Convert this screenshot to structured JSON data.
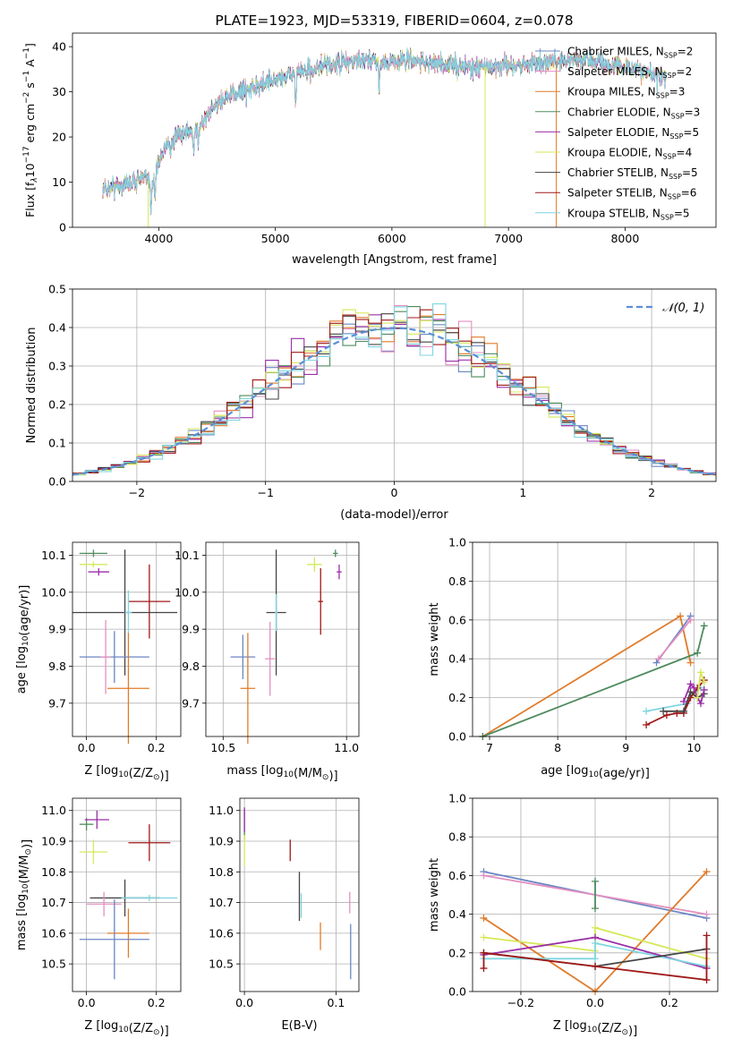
{
  "chart_data": [
    {
      "type": "line",
      "title": "PLATE=1923, MJD=53319, FIBERID=0604, z=0.078",
      "xlabel": "wavelength [Angstrom, rest frame]",
      "ylabel_parts": [
        "Flux [f",
        "λ",
        "10",
        "−17",
        " erg cm",
        "−2",
        " s",
        "−1",
        " A",
        "−1",
        "]"
      ],
      "xlim": [
        3260,
        8780
      ],
      "ylim": [
        0,
        43
      ],
      "xticks": [
        4000,
        5000,
        6000,
        7000,
        8000
      ],
      "yticks": [
        0,
        10,
        20,
        30,
        40
      ],
      "grid": false,
      "legend_position": "right",
      "series": [
        {
          "name": "Chabrier MILES, N",
          "sub": "SSP",
          "suffix": "=2",
          "color": "#6b86c4"
        },
        {
          "name": "Salpeter MILES, N",
          "sub": "SSP",
          "suffix": "=2",
          "color": "#e48fc0"
        },
        {
          "name": "Kroupa MILES, N",
          "sub": "SSP",
          "suffix": "=3",
          "color": "#e07b2a"
        },
        {
          "name": "Chabrier ELODIE, N",
          "sub": "SSP",
          "suffix": "=3",
          "color": "#4e8a5e"
        },
        {
          "name": "Salpeter ELODIE, N",
          "sub": "SSP",
          "suffix": "=5",
          "color": "#9a2fa8"
        },
        {
          "name": "Kroupa ELODIE, N",
          "sub": "SSP",
          "suffix": "=4",
          "color": "#d6e85a"
        },
        {
          "name": "Chabrier STELIB, N",
          "sub": "SSP",
          "suffix": "=5",
          "color": "#444444"
        },
        {
          "name": "Salpeter STELIB, N",
          "sub": "SSP",
          "suffix": "=6",
          "color": "#a01818"
        },
        {
          "name": "Kroupa STELIB, N",
          "sub": "SSP",
          "suffix": "=5",
          "color": "#7fd6e0"
        }
      ],
      "continuum": {
        "x": [
          3520,
          3700,
          3850,
          3950,
          4050,
          4150,
          4300,
          4400,
          4500,
          4700,
          4900,
          5100,
          5300,
          5500,
          5700,
          5900,
          6100,
          6300,
          6500,
          6700,
          6900,
          7100,
          7300,
          7500,
          7700,
          7900,
          8100,
          8300
        ],
        "y": [
          8.5,
          9.5,
          11,
          10,
          18,
          20,
          21,
          24,
          27.5,
          30,
          32,
          33.5,
          35,
          36,
          37,
          36.5,
          37,
          36.5,
          36,
          35.5,
          35.5,
          36,
          36.5,
          37,
          37,
          36,
          35,
          33
        ]
      },
      "absorption": [
        {
          "x": 3934,
          "depth": 6
        },
        {
          "x": 3968,
          "depth": 5
        },
        {
          "x": 4101,
          "depth": 3
        },
        {
          "x": 4300,
          "depth": 4
        },
        {
          "x": 4340,
          "depth": 3
        },
        {
          "x": 4861,
          "depth": 3
        },
        {
          "x": 5175,
          "depth": 7
        },
        {
          "x": 5270,
          "depth": 2
        },
        {
          "x": 5892,
          "depth": 6
        },
        {
          "x": 6563,
          "depth": 2
        }
      ],
      "masked_edges": [
        {
          "x": 3910,
          "series": "Kroupa ELODIE"
        },
        {
          "x": 6800,
          "series": "Kroupa ELODIE"
        },
        {
          "x": 7410,
          "series": "Kroupa MILES"
        }
      ]
    },
    {
      "type": "histogram",
      "xlabel": "(data-model)/error",
      "ylabel": "Normed distribution",
      "xlim": [
        -2.5,
        2.5
      ],
      "ylim": [
        0,
        0.5
      ],
      "xticks": [
        -2,
        -1,
        0,
        1,
        2
      ],
      "yticks": [
        0.0,
        0.1,
        0.2,
        0.3,
        0.4,
        0.5
      ],
      "grid": true,
      "legend": "𝒩(0, 1)",
      "legend_position": "top-right",
      "bin_width": 0.1,
      "bin_start": -2.5,
      "note": "nine overlaid step histograms (one per model) following a standard normal curve"
    },
    {
      "type": "scatter",
      "name": "age_vs_Z",
      "xlabel": "Z [log10(Z/Z⊙)]",
      "ylabel": "age [log10(age/yr)]",
      "xlim": [
        -0.04,
        0.27
      ],
      "ylim": [
        9.61,
        10.135
      ],
      "xticks": [
        0.0,
        0.2
      ],
      "yticks": [
        9.7,
        9.8,
        9.9,
        10.0,
        10.1
      ],
      "grid": true,
      "points": [
        {
          "x": 0.02,
          "y": 10.105,
          "xerr": 0.04,
          "yerr": 0.01,
          "color": "#4e8a5e"
        },
        {
          "x": 0.02,
          "y": 10.075,
          "xerr": 0.04,
          "yerr": 0.008,
          "color": "#d6e85a"
        },
        {
          "x": 0.035,
          "y": 10.055,
          "xerr": 0.03,
          "yerr": 0.01,
          "color": "#9a2fa8"
        },
        {
          "x": 0.18,
          "y": 9.975,
          "xerr": 0.06,
          "yerr": 0.1,
          "color": "#a01818"
        },
        {
          "x": 0.11,
          "y": 9.945,
          "xerr": 0.15,
          "yerr": 0.17,
          "color": "#444444"
        },
        {
          "x": 0.12,
          "y": 9.945,
          "xerr": 0.01,
          "yerr": 0.06,
          "color": "#7fd6e0"
        },
        {
          "x": 0.08,
          "y": 9.825,
          "xerr": 0.1,
          "yerr": 0.07,
          "color": "#6b86c4"
        },
        {
          "x": 0.055,
          "y": 9.825,
          "xerr": 0.015,
          "yerr": 0.1,
          "color": "#e48fc0"
        },
        {
          "x": 0.12,
          "y": 9.74,
          "xerr": 0.06,
          "yerr": 0.15,
          "color": "#e07b2a"
        }
      ]
    },
    {
      "type": "scatter",
      "name": "age_vs_mass",
      "xlabel": "mass [log10(M/M⊙)]",
      "ylabel": "",
      "xlim": [
        10.43,
        11.05
      ],
      "ylim": [
        9.61,
        10.135
      ],
      "xticks": [
        10.5,
        11.0
      ],
      "yticks": [
        9.7,
        9.8,
        9.9,
        10.0,
        10.1
      ],
      "grid": true,
      "points": [
        {
          "x": 10.955,
          "y": 10.105,
          "xerr": 0.01,
          "yerr": 0.01,
          "color": "#4e8a5e"
        },
        {
          "x": 10.87,
          "y": 10.075,
          "xerr": 0.03,
          "yerr": 0.02,
          "color": "#d6e85a"
        },
        {
          "x": 10.97,
          "y": 10.055,
          "xerr": 0.01,
          "yerr": 0.02,
          "color": "#9a2fa8"
        },
        {
          "x": 10.895,
          "y": 9.975,
          "xerr": 0.01,
          "yerr": 0.09,
          "color": "#a01818"
        },
        {
          "x": 10.715,
          "y": 9.945,
          "xerr": 0.04,
          "yerr": 0.17,
          "color": "#444444"
        },
        {
          "x": 10.715,
          "y": 9.945,
          "xerr": 0.005,
          "yerr": 0.05,
          "color": "#7fd6e0"
        },
        {
          "x": 10.58,
          "y": 9.825,
          "xerr": 0.05,
          "yerr": 0.06,
          "color": "#6b86c4"
        },
        {
          "x": 10.69,
          "y": 9.82,
          "xerr": 0.02,
          "yerr": 0.1,
          "color": "#e48fc0"
        },
        {
          "x": 10.6,
          "y": 9.74,
          "xerr": 0.03,
          "yerr": 0.15,
          "color": "#e07b2a"
        }
      ]
    },
    {
      "type": "line",
      "name": "weight_vs_age",
      "xlabel": "age [log10(age/yr)]",
      "ylabel": "mass weight",
      "xlim": [
        6.75,
        10.35
      ],
      "ylim": [
        0,
        1.0
      ],
      "xticks": [
        7,
        8,
        9,
        10
      ],
      "yticks": [
        0.0,
        0.2,
        0.4,
        0.6,
        0.8,
        1.0
      ],
      "grid": true,
      "series": [
        {
          "color": "#e07b2a",
          "x": [
            6.9,
            9.8,
            9.95
          ],
          "y": [
            0.0,
            0.62,
            0.38
          ]
        },
        {
          "color": "#6b86c4",
          "x": [
            9.45,
            9.95
          ],
          "y": [
            0.38,
            0.62
          ]
        },
        {
          "color": "#e48fc0",
          "x": [
            9.48,
            9.95
          ],
          "y": [
            0.4,
            0.6
          ]
        },
        {
          "color": "#4e8a5e",
          "x": [
            6.9,
            10.05,
            10.15
          ],
          "y": [
            0.0,
            0.43,
            0.57
          ]
        },
        {
          "color": "#7fd6e0",
          "x": [
            9.3,
            9.9,
            10.0,
            10.1
          ],
          "y": [
            0.13,
            0.17,
            0.23,
            0.25
          ]
        },
        {
          "color": "#a01818",
          "x": [
            9.3,
            9.6,
            9.75,
            9.85,
            9.95,
            10.05,
            10.15
          ],
          "y": [
            0.06,
            0.11,
            0.12,
            0.12,
            0.2,
            0.25,
            0.29
          ]
        },
        {
          "color": "#444444",
          "x": [
            9.55,
            9.85,
            9.95,
            10.05,
            10.15
          ],
          "y": [
            0.13,
            0.13,
            0.23,
            0.2,
            0.22
          ]
        },
        {
          "color": "#9a2fa8",
          "x": [
            9.85,
            9.95,
            10.0,
            10.05,
            10.1,
            10.15
          ],
          "y": [
            0.18,
            0.27,
            0.25,
            0.2,
            0.17,
            0.24
          ]
        },
        {
          "color": "#d6e85a",
          "x": [
            10.05,
            10.1,
            10.15
          ],
          "y": [
            0.2,
            0.33,
            0.28
          ]
        }
      ]
    },
    {
      "type": "scatter",
      "name": "mass_vs_Z",
      "xlabel": "Z [log10(Z/Z⊙)]",
      "ylabel": "mass [log10(M/M⊙)]",
      "xlim": [
        -0.04,
        0.27
      ],
      "ylim": [
        10.41,
        11.04
      ],
      "xticks": [
        0.0,
        0.2
      ],
      "yticks": [
        10.5,
        10.6,
        10.7,
        10.8,
        10.9,
        11.0
      ],
      "grid": true,
      "points": [
        {
          "x": 0.0,
          "y": 10.955,
          "xerr": 0.02,
          "yerr": 0.02,
          "color": "#4e8a5e"
        },
        {
          "x": 0.03,
          "y": 10.97,
          "xerr": 0.035,
          "yerr": 0.03,
          "color": "#9a2fa8"
        },
        {
          "x": 0.02,
          "y": 10.865,
          "xerr": 0.04,
          "yerr": 0.04,
          "color": "#d6e85a"
        },
        {
          "x": 0.18,
          "y": 10.895,
          "xerr": 0.06,
          "yerr": 0.06,
          "color": "#a01818"
        },
        {
          "x": 0.11,
          "y": 10.715,
          "xerr": 0.1,
          "yerr": 0.06,
          "color": "#444444"
        },
        {
          "x": 0.18,
          "y": 10.715,
          "xerr": 0.08,
          "yerr": 0.01,
          "color": "#7fd6e0"
        },
        {
          "x": 0.05,
          "y": 10.695,
          "xerr": 0.05,
          "yerr": 0.04,
          "color": "#e48fc0"
        },
        {
          "x": 0.12,
          "y": 10.6,
          "xerr": 0.06,
          "yerr": 0.08,
          "color": "#e07b2a"
        },
        {
          "x": 0.08,
          "y": 10.58,
          "xerr": 0.1,
          "yerr": 0.13,
          "color": "#6b86c4"
        }
      ]
    },
    {
      "type": "scatter",
      "name": "mass_vs_EBV",
      "xlabel": "E(B-V)",
      "ylabel": "",
      "xlim": [
        -0.005,
        0.125
      ],
      "ylim": [
        10.41,
        11.04
      ],
      "xticks": [
        0.0,
        0.1
      ],
      "yticks": [
        10.5,
        10.6,
        10.7,
        10.8,
        10.9,
        11.0
      ],
      "grid": true,
      "points": [
        {
          "x": 0.0,
          "y": 10.955,
          "xerr": 0.0,
          "yerr": 0.05,
          "color": "#4e8a5e"
        },
        {
          "x": 0.0,
          "y": 10.97,
          "xerr": 0.0,
          "yerr": 0.04,
          "color": "#9a2fa8"
        },
        {
          "x": 0.0,
          "y": 10.87,
          "xerr": 0.0,
          "yerr": 0.05,
          "color": "#d6e85a"
        },
        {
          "x": 0.05,
          "y": 10.87,
          "xerr": 0.0,
          "yerr": 0.035,
          "color": "#a01818"
        },
        {
          "x": 0.06,
          "y": 10.72,
          "xerr": 0.0,
          "yerr": 0.08,
          "color": "#444444"
        },
        {
          "x": 0.062,
          "y": 10.69,
          "xerr": 0.0,
          "yerr": 0.04,
          "color": "#7fd6e0"
        },
        {
          "x": 0.083,
          "y": 10.59,
          "xerr": 0.0,
          "yerr": 0.045,
          "color": "#e07b2a"
        },
        {
          "x": 0.115,
          "y": 10.7,
          "xerr": 0.0,
          "yerr": 0.035,
          "color": "#e48fc0"
        },
        {
          "x": 0.116,
          "y": 10.54,
          "xerr": 0.0,
          "yerr": 0.09,
          "color": "#6b86c4"
        }
      ]
    },
    {
      "type": "line",
      "name": "weight_vs_Z",
      "xlabel": "Z [log10(Z/Z⊙)]",
      "ylabel": "mass weight",
      "xlim": [
        -0.33,
        0.33
      ],
      "ylim": [
        0,
        1.0
      ],
      "xticks": [
        -0.2,
        0.0,
        0.2
      ],
      "yticks": [
        0.0,
        0.2,
        0.4,
        0.6,
        0.8,
        1.0
      ],
      "grid": true,
      "series": [
        {
          "color": "#6b86c4",
          "x": [
            -0.3,
            0.3
          ],
          "y": [
            0.62,
            0.38
          ]
        },
        {
          "color": "#e48fc0",
          "x": [
            -0.3,
            0.3
          ],
          "y": [
            0.6,
            0.4
          ]
        },
        {
          "color": "#e07b2a",
          "x": [
            -0.3,
            0.0,
            0.3
          ],
          "y": [
            0.38,
            0.0,
            0.62
          ]
        },
        {
          "color": "#4e8a5e",
          "x": [
            0.0,
            0.0
          ],
          "y": [
            0.57,
            0.43
          ]
        },
        {
          "color": "#d6e85a",
          "x": [
            -0.3,
            0.0,
            0.0,
            0.3
          ],
          "y": [
            0.28,
            0.21,
            0.33,
            0.17
          ]
        },
        {
          "color": "#9a2fa8",
          "x": [
            -0.3,
            0.0,
            0.3
          ],
          "y": [
            0.19,
            0.28,
            0.12
          ]
        },
        {
          "color": "#7fd6e0",
          "x": [
            -0.3,
            0.0,
            0.0,
            0.3
          ],
          "y": [
            0.17,
            0.17,
            0.25,
            0.13
          ]
        },
        {
          "color": "#444444",
          "x": [
            -0.3,
            0.0,
            0.3
          ],
          "y": [
            0.2,
            0.13,
            0.22
          ]
        },
        {
          "color": "#a01818",
          "x": [
            -0.3,
            -0.3,
            0.0,
            0.3,
            0.3
          ],
          "y": [
            0.12,
            0.2,
            0.13,
            0.06,
            0.29
          ]
        }
      ]
    }
  ]
}
